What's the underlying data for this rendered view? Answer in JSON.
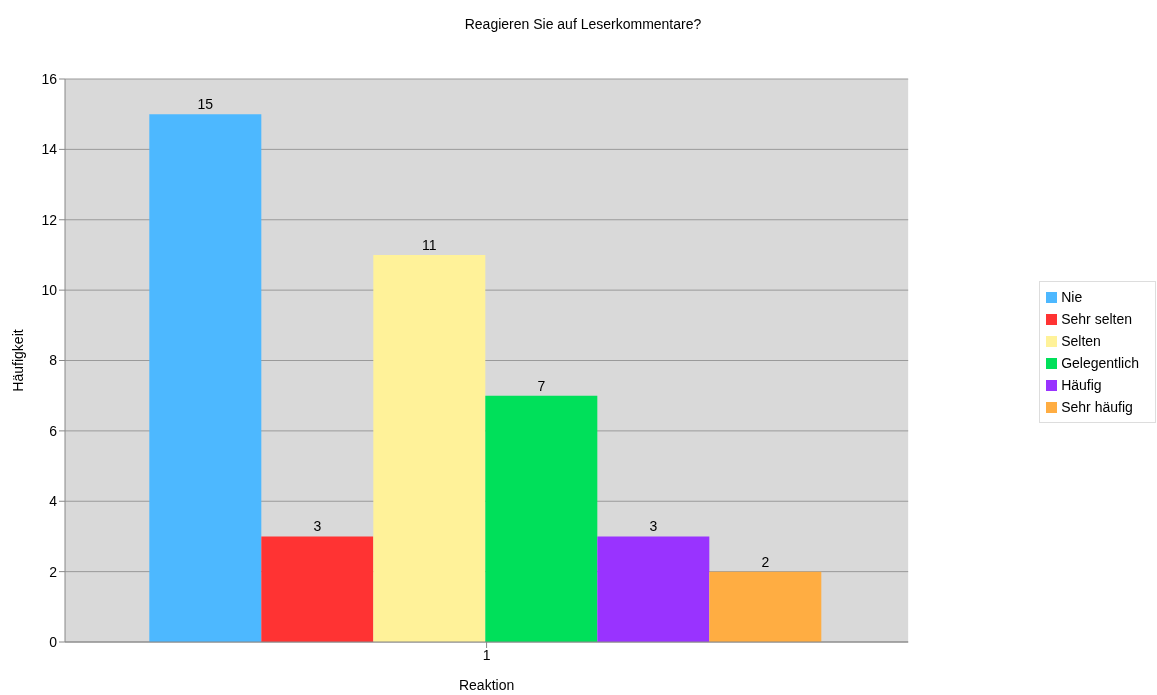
{
  "chart_data": {
    "type": "bar",
    "title": "Reagieren Sie auf Leserkommentare?",
    "xlabel": "Reaktion",
    "ylabel": "Häufigkeit",
    "categories": [
      "1"
    ],
    "series": [
      {
        "name": "Nie",
        "color": "#4db8ff",
        "values": [
          15
        ]
      },
      {
        "name": "Sehr selten",
        "color": "#ff3333",
        "values": [
          3
        ]
      },
      {
        "name": "Selten",
        "color": "#fff299",
        "values": [
          11
        ]
      },
      {
        "name": "Gelegentlich",
        "color": "#00e05a",
        "values": [
          7
        ]
      },
      {
        "name": "Häufig",
        "color": "#9933ff",
        "values": [
          3
        ]
      },
      {
        "name": "Sehr häufig",
        "color": "#ffad42",
        "values": [
          2
        ]
      }
    ],
    "ylim": [
      0,
      16
    ],
    "yticks": [
      0,
      2,
      4,
      6,
      8,
      10,
      12,
      14,
      16
    ],
    "grid": "y",
    "legend": "right",
    "data_labels": true
  }
}
